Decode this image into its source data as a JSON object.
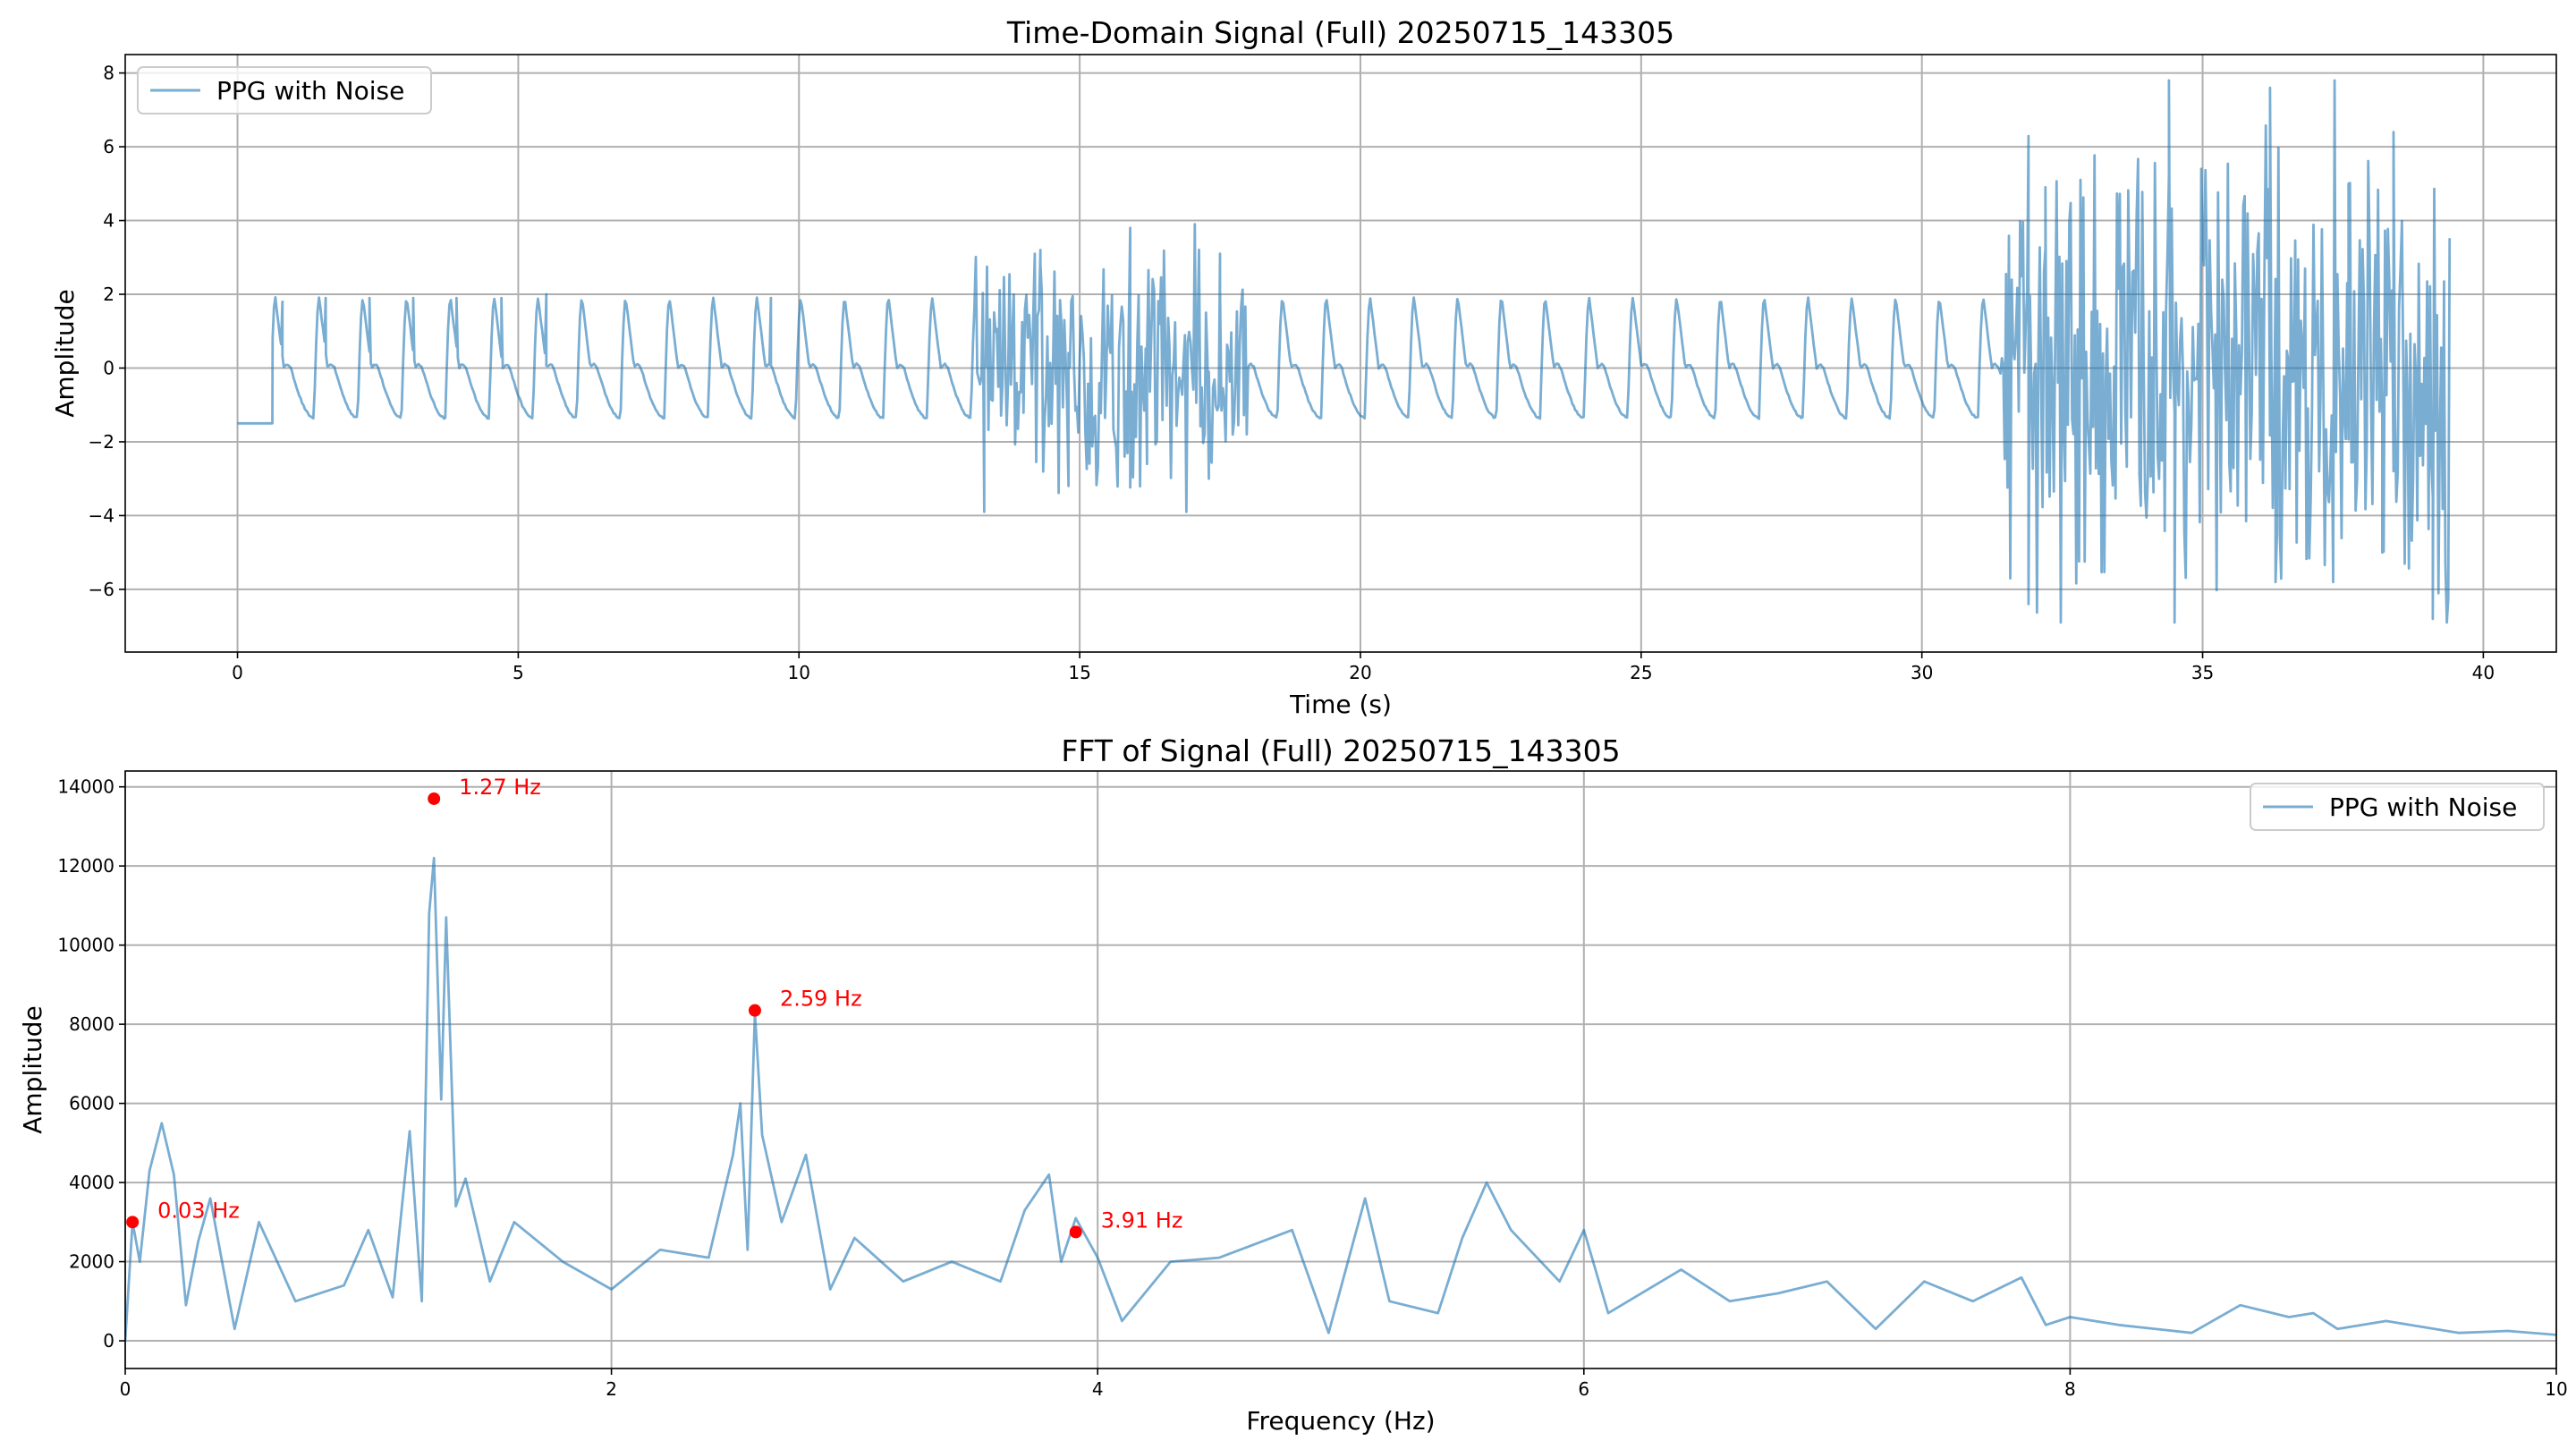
{
  "chart_data": [
    {
      "type": "line",
      "title": "Time-Domain Signal (Full) 20250715_143305",
      "xlabel": "Time (s)",
      "ylabel": "Amplitude",
      "xlim": [
        -2,
        41.3
      ],
      "ylim": [
        -7.7,
        8.5
      ],
      "xticks": [
        0,
        5,
        10,
        15,
        20,
        25,
        30,
        35,
        40
      ],
      "yticks": [
        -6,
        -4,
        -2,
        0,
        2,
        4,
        6,
        8
      ],
      "grid": true,
      "legend": "upper left",
      "series": [
        {
          "name": "PPG with Noise",
          "color": "#1f77b4",
          "x_start": 0,
          "x_end": 39.4,
          "flat_until": 0.62,
          "flat_value": -1.5,
          "clean_segments": [
            [
              0.62,
              13.1
            ],
            [
              18.0,
              31.4
            ]
          ],
          "beat_period": 0.78,
          "peak_value": 1.9,
          "trough_value": -1.35,
          "noisy_segments": [
            {
              "start": 13.1,
              "end": 18.0,
              "min": -3.9,
              "max": 3.9
            },
            {
              "start": 31.4,
              "end": 39.4,
              "min": -6.9,
              "max": 7.8
            }
          ],
          "sample_points": [
            [
              0.0,
              -1.5
            ],
            [
              0.62,
              -1.5
            ],
            [
              0.8,
              1.8
            ],
            [
              1.57,
              1.9
            ],
            [
              2.35,
              1.9
            ],
            [
              3.13,
              1.9
            ],
            [
              3.9,
              1.9
            ],
            [
              4.7,
              1.9
            ],
            [
              5.5,
              2.0
            ],
            [
              9.5,
              1.9
            ],
            [
              13.3,
              -3.9
            ],
            [
              14.3,
              3.2
            ],
            [
              14.8,
              -3.2
            ],
            [
              15.9,
              3.8
            ],
            [
              16.2,
              -2.6
            ],
            [
              17.3,
              -3.0
            ],
            [
              17.5,
              3.1
            ],
            [
              31.5,
              1.7
            ],
            [
              31.9,
              -6.4
            ],
            [
              32.2,
              4.9
            ],
            [
              34.4,
              7.8
            ],
            [
              34.5,
              -6.9
            ],
            [
              36.2,
              7.6
            ],
            [
              36.3,
              -5.8
            ],
            [
              37.6,
              5.0
            ],
            [
              38.2,
              -5.0
            ],
            [
              38.4,
              6.4
            ],
            [
              39.1,
              -6.8
            ],
            [
              39.3,
              1.0
            ]
          ]
        }
      ]
    },
    {
      "type": "line",
      "title": "FFT of Signal (Full) 20250715_143305",
      "xlabel": "Frequency (Hz)",
      "ylabel": "Amplitude",
      "xlim": [
        0,
        10
      ],
      "ylim": [
        -700,
        14400
      ],
      "xticks": [
        0,
        2,
        4,
        6,
        8,
        10
      ],
      "yticks": [
        0,
        2000,
        4000,
        6000,
        8000,
        10000,
        12000,
        14000
      ],
      "grid": true,
      "legend": "upper right",
      "series": [
        {
          "name": "PPG with Noise",
          "color": "#1f77b4",
          "points": [
            [
              0.0,
              0
            ],
            [
              0.03,
              3000
            ],
            [
              0.06,
              2000
            ],
            [
              0.1,
              4300
            ],
            [
              0.15,
              5500
            ],
            [
              0.2,
              4200
            ],
            [
              0.25,
              900
            ],
            [
              0.3,
              2500
            ],
            [
              0.35,
              3600
            ],
            [
              0.45,
              300
            ],
            [
              0.55,
              3000
            ],
            [
              0.7,
              1000
            ],
            [
              0.9,
              1400
            ],
            [
              1.0,
              2800
            ],
            [
              1.1,
              1100
            ],
            [
              1.17,
              5300
            ],
            [
              1.22,
              1000
            ],
            [
              1.25,
              10800
            ],
            [
              1.27,
              12200
            ],
            [
              1.3,
              6100
            ],
            [
              1.32,
              10700
            ],
            [
              1.36,
              3400
            ],
            [
              1.4,
              4100
            ],
            [
              1.5,
              1500
            ],
            [
              1.6,
              3000
            ],
            [
              1.8,
              2000
            ],
            [
              2.0,
              1300
            ],
            [
              2.2,
              2300
            ],
            [
              2.4,
              2100
            ],
            [
              2.5,
              4700
            ],
            [
              2.53,
              6000
            ],
            [
              2.56,
              2300
            ],
            [
              2.59,
              8300
            ],
            [
              2.62,
              5200
            ],
            [
              2.7,
              3000
            ],
            [
              2.8,
              4700
            ],
            [
              2.9,
              1300
            ],
            [
              3.0,
              2600
            ],
            [
              3.2,
              1500
            ],
            [
              3.4,
              2000
            ],
            [
              3.6,
              1500
            ],
            [
              3.7,
              3300
            ],
            [
              3.8,
              4200
            ],
            [
              3.85,
              2000
            ],
            [
              3.91,
              3100
            ],
            [
              4.0,
              2100
            ],
            [
              4.1,
              500
            ],
            [
              4.3,
              2000
            ],
            [
              4.5,
              2100
            ],
            [
              4.8,
              2800
            ],
            [
              4.95,
              200
            ],
            [
              5.1,
              3600
            ],
            [
              5.2,
              1000
            ],
            [
              5.4,
              700
            ],
            [
              5.5,
              2600
            ],
            [
              5.6,
              4000
            ],
            [
              5.7,
              2800
            ],
            [
              5.9,
              1500
            ],
            [
              6.0,
              2800
            ],
            [
              6.1,
              700
            ],
            [
              6.4,
              1800
            ],
            [
              6.6,
              1000
            ],
            [
              6.8,
              1200
            ],
            [
              7.0,
              1500
            ],
            [
              7.2,
              300
            ],
            [
              7.4,
              1500
            ],
            [
              7.6,
              1000
            ],
            [
              7.8,
              1600
            ],
            [
              7.9,
              400
            ],
            [
              8.0,
              600
            ],
            [
              8.2,
              400
            ],
            [
              8.5,
              200
            ],
            [
              8.7,
              900
            ],
            [
              8.9,
              600
            ],
            [
              9.0,
              700
            ],
            [
              9.1,
              300
            ],
            [
              9.3,
              500
            ],
            [
              9.6,
              200
            ],
            [
              9.8,
              250
            ],
            [
              10.0,
              150
            ]
          ]
        }
      ],
      "annotations": [
        {
          "x": 0.03,
          "y": 3000,
          "label": "0.03 Hz",
          "color": "#ff0000"
        },
        {
          "x": 1.27,
          "y": 13700,
          "label": "1.27 Hz",
          "color": "#ff0000"
        },
        {
          "x": 2.59,
          "y": 8350,
          "label": "2.59 Hz",
          "color": "#ff0000"
        },
        {
          "x": 3.91,
          "y": 2750,
          "label": "3.91 Hz",
          "color": "#ff0000"
        }
      ]
    }
  ]
}
